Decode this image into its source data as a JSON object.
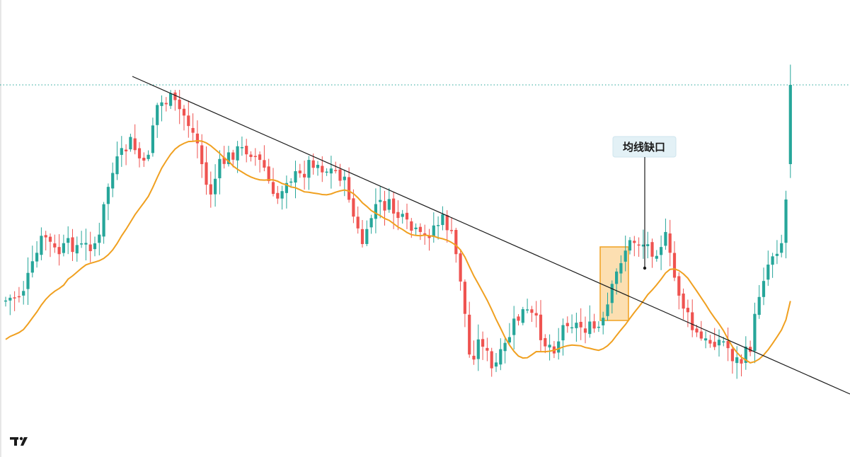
{
  "chart_data": {
    "type": "candlestick",
    "title": "",
    "xlabel": "",
    "ylabel": "",
    "ylim": [
      0,
      100
    ],
    "grid": false,
    "legend": "none",
    "colors": {
      "up": "#26a69a",
      "down": "#ef5350",
      "ma": "#f0a020",
      "trendline": "#1a1a1a",
      "price_line": "#26a69a",
      "highlight_fill": "#fcd9a3",
      "highlight_stroke": "#f0a020",
      "callout_bg": "#e3f1f6"
    },
    "annotation": {
      "text": "均线缺口"
    },
    "logo": "tradingview-logo"
  },
  "brand": {
    "logo_text": "TV"
  }
}
